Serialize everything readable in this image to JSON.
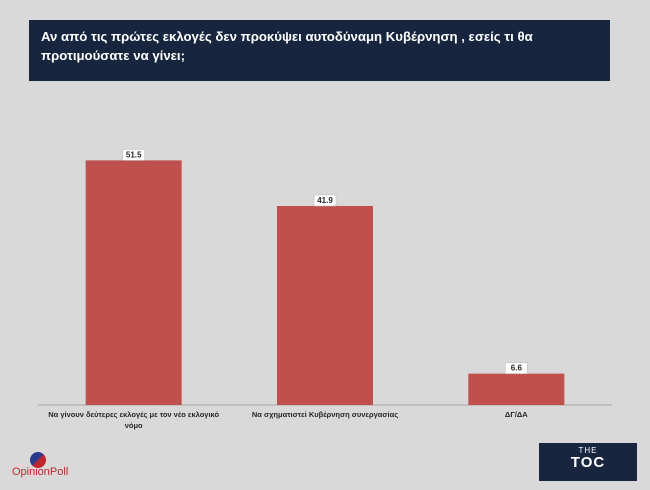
{
  "title": "Αν από τις πρώτες εκλογές δεν προκύψει αυτοδύναμη Κυβέρνηση , εσείς τι θα προτιμούσατε να γίνει;",
  "chart_data": {
    "type": "bar",
    "categories": [
      [
        "Να γίνουν δεύτερες εκλογές με τον νέο εκλογικό",
        "νόμο"
      ],
      [
        "Να σχηματιστεί Κυβέρνηση συνεργασίας"
      ],
      [
        "ΔΓ/ΔΑ"
      ]
    ],
    "values": [
      51.5,
      41.9,
      6.6
    ],
    "value_labels": [
      "51.5",
      "41.9",
      "6.6"
    ],
    "color": "#c0504d",
    "ylim": [
      0,
      60
    ],
    "grid": false,
    "legend": false
  },
  "branding": {
    "left_logo_text": "OpinionPoll",
    "right_logo_small": "THE",
    "right_logo_main": "TOC"
  },
  "colors": {
    "title_bg": "#17253f",
    "bar": "#c0504d",
    "background": "#d9d9d9"
  }
}
